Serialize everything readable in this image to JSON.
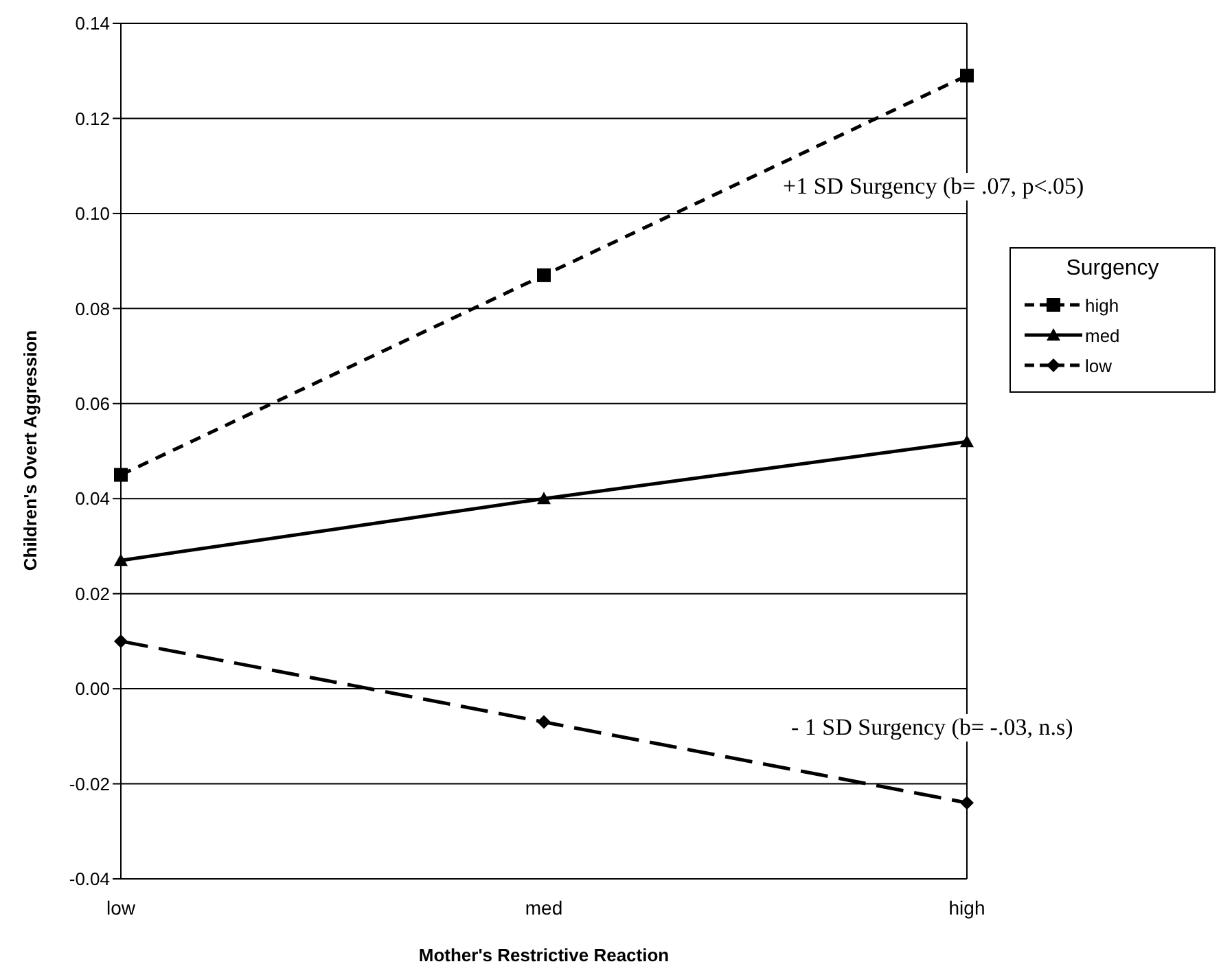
{
  "chart_data": {
    "type": "line",
    "xlabel": "Mother's Restrictive Reaction",
    "ylabel": "Children's Overt Aggression",
    "legend_title": "Surgency",
    "categories": [
      "low",
      "med",
      "high"
    ],
    "series": [
      {
        "name": "high",
        "color": "#000000",
        "values": [
          0.045,
          0.087,
          0.129
        ],
        "marker": "square",
        "line_style": "dashed"
      },
      {
        "name": "med",
        "color": "#000000",
        "values": [
          0.027,
          0.04,
          0.052
        ],
        "marker": "triangle",
        "line_style": "solid"
      },
      {
        "name": "low",
        "color": "#000000",
        "values": [
          0.01,
          -0.007,
          -0.024
        ],
        "marker": "diamond",
        "line_style": "dashed"
      }
    ],
    "ylim": [
      -0.04,
      0.14
    ],
    "yticks": [
      {
        "value": -0.04,
        "label": "-0.04"
      },
      {
        "value": -0.02,
        "label": "-0.02"
      },
      {
        "value": 0,
        "label": "0.00"
      },
      {
        "value": 0.02,
        "label": "0.02"
      },
      {
        "value": 0.04,
        "label": "0.04"
      },
      {
        "value": 0.06,
        "label": "0.06"
      },
      {
        "value": 0.08,
        "label": "0.08"
      },
      {
        "value": 0.1,
        "label": "0.10"
      },
      {
        "value": 0.12,
        "label": "0.12"
      },
      {
        "value": 0.14,
        "label": "0.14"
      }
    ],
    "grid": "y",
    "legend": "right",
    "annotations": [
      "+1 SD Surgency (b= .07, p<.05)",
      "- 1 SD Surgency (b= -.03, n.s)"
    ]
  }
}
